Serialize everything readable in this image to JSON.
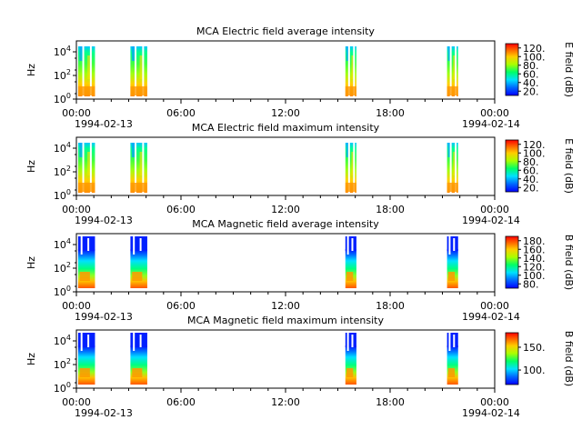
{
  "figure": {
    "x_tick_labels": [
      "00:00",
      "06:00",
      "12:00",
      "18:00",
      "00:00"
    ],
    "start_date": "1994-02-13",
    "end_date": "1994-02-14"
  },
  "chart_data": [
    {
      "type": "heatmap",
      "title": "MCA  Electric field average intensity",
      "ylabel": "Hz",
      "y_scale": "log",
      "y_tick_labels": [
        "10^0",
        "10^2",
        "10^4"
      ],
      "colorbar_label": "E field (dB)",
      "colorbar_ticks": [
        "20.",
        "40.",
        "60.",
        "80.",
        "100.",
        "120."
      ],
      "xlim": [
        "1994-02-13 00:00",
        "1994-02-14 00:00"
      ],
      "ylim": [
        1,
        30000
      ],
      "data_intervals": [
        [
          "00:00",
          "01:10"
        ],
        [
          "03:00",
          "04:10"
        ],
        [
          "15:20",
          "16:10"
        ],
        [
          "21:10",
          "22:00"
        ]
      ]
    },
    {
      "type": "heatmap",
      "title": "MCA  Electric field maximum intensity",
      "ylabel": "Hz",
      "y_scale": "log",
      "y_tick_labels": [
        "10^0",
        "10^2",
        "10^4"
      ],
      "colorbar_label": "E field (dB)",
      "colorbar_ticks": [
        "20.",
        "40.",
        "60.",
        "80.",
        "100.",
        "120."
      ],
      "xlim": [
        "1994-02-13 00:00",
        "1994-02-14 00:00"
      ],
      "ylim": [
        1,
        30000
      ],
      "data_intervals": [
        [
          "00:00",
          "01:10"
        ],
        [
          "03:00",
          "04:10"
        ],
        [
          "15:20",
          "16:10"
        ],
        [
          "21:10",
          "22:00"
        ]
      ]
    },
    {
      "type": "heatmap",
      "title": "MCA  Magnetic field average intensity",
      "ylabel": "Hz",
      "y_scale": "log",
      "y_tick_labels": [
        "10^0",
        "10^2",
        "10^4"
      ],
      "colorbar_label": "B field (dB)",
      "colorbar_ticks": [
        "80.",
        "100.",
        "120.",
        "140.",
        "160.",
        "180."
      ],
      "xlim": [
        "1994-02-13 00:00",
        "1994-02-14 00:00"
      ],
      "ylim": [
        1,
        30000
      ],
      "data_intervals": [
        [
          "00:00",
          "01:10"
        ],
        [
          "03:00",
          "04:10"
        ],
        [
          "15:20",
          "16:10"
        ],
        [
          "21:10",
          "22:00"
        ]
      ]
    },
    {
      "type": "heatmap",
      "title": "MCA  Magnetic field maximum intensity",
      "ylabel": "Hz",
      "y_scale": "log",
      "y_tick_labels": [
        "10^0",
        "10^2",
        "10^4"
      ],
      "colorbar_label": "B field (dB)",
      "colorbar_ticks": [
        "100.",
        "150."
      ],
      "xlim": [
        "1994-02-13 00:00",
        "1994-02-14 00:00"
      ],
      "ylim": [
        1,
        30000
      ],
      "data_intervals": [
        [
          "00:00",
          "01:10"
        ],
        [
          "03:00",
          "04:10"
        ],
        [
          "15:20",
          "16:10"
        ],
        [
          "21:10",
          "22:00"
        ]
      ]
    }
  ]
}
